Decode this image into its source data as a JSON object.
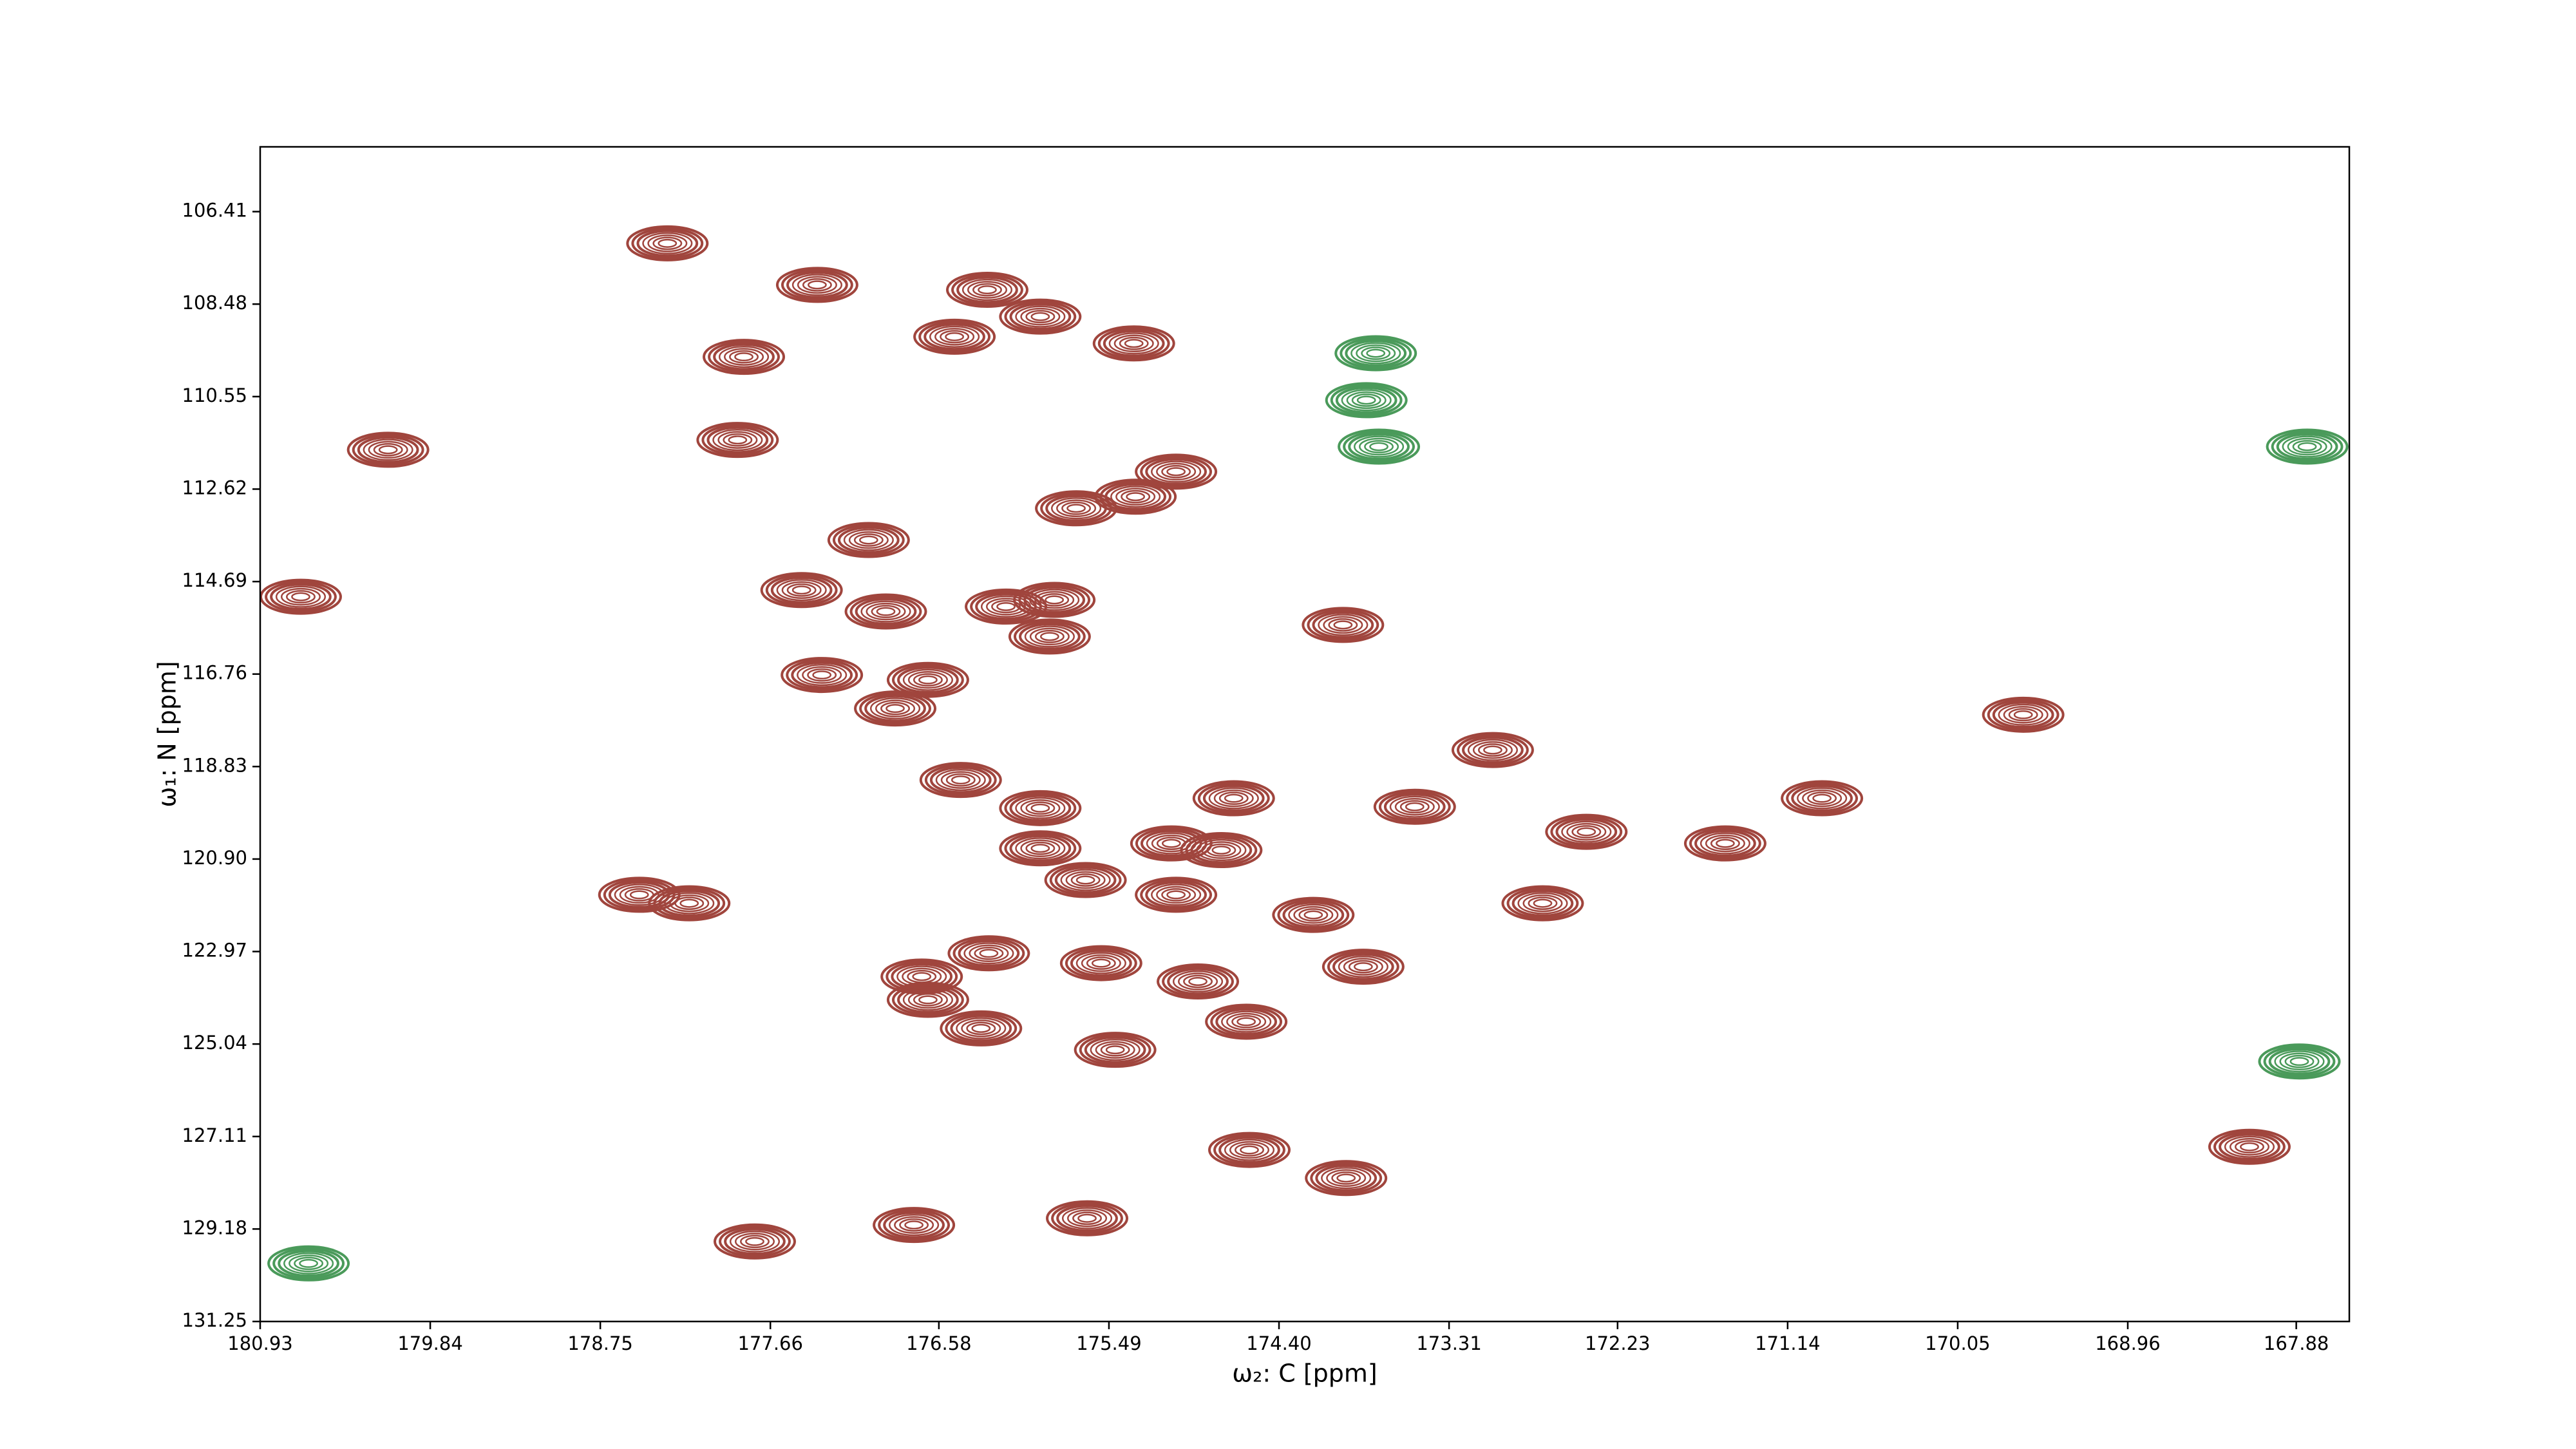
{
  "chart_data": {
    "type": "contour",
    "x_label": "ω₂: C [ppm]",
    "y_label": "ω₁: N [ppm]",
    "xlim": [
      180.93,
      167.54
    ],
    "ylim": [
      104.96,
      131.25
    ],
    "y_inverted": true,
    "xticks": [
      180.93,
      179.84,
      178.75,
      177.66,
      176.58,
      175.49,
      {
        "value": 174.4,
        "label": "174.40"
      },
      173.31,
      172.23,
      171.14,
      170.05,
      168.96,
      167.88
    ],
    "yticks": [
      106.41,
      108.48,
      110.55,
      112.62,
      114.69,
      116.76,
      118.83,
      {
        "value": 120.9,
        "label": "120.90"
      },
      122.97,
      125.04,
      127.11,
      129.18,
      131.25
    ],
    "series": [
      {
        "color": "#a0453d",
        "x": [
          178.32,
          177.36,
          176.27,
          175.93,
          176.48,
          175.33,
          177.83,
          177.87,
          180.11,
          175.32,
          175.06,
          175.7,
          177.03,
          177.46,
          176.92,
          176.15,
          175.84,
          175.87,
          173.99,
          177.33,
          176.65,
          176.86,
          180.67,
          176.44,
          175.93,
          174.69,
          173.53,
          173.03,
          169.63,
          170.92,
          172.43,
          171.54,
          175.93,
          174.77,
          175.09,
          175.64,
          175.06,
          178.5,
          178.18,
          172.71,
          174.18,
          176.26,
          175.54,
          173.86,
          176.69,
          176.65,
          174.92,
          176.31,
          174.61,
          175.45,
          174.59,
          173.97,
          175.63,
          176.74,
          177.76,
          168.18
        ],
        "values": [
          107.12,
          108.05,
          108.16,
          108.76,
          109.21,
          109.36,
          109.66,
          111.52,
          111.74,
          112.79,
          112.23,
          113.05,
          113.76,
          114.88,
          115.36,
          115.25,
          115.1,
          115.92,
          115.66,
          116.78,
          116.89,
          117.53,
          115.03,
          119.13,
          119.76,
          119.54,
          119.73,
          118.46,
          117.67,
          119.54,
          120.29,
          120.55,
          120.66,
          120.7,
          120.55,
          121.37,
          121.7,
          121.7,
          121.89,
          121.89,
          122.15,
          123.01,
          123.23,
          123.31,
          123.53,
          124.05,
          123.64,
          124.69,
          124.54,
          125.17,
          127.41,
          128.04,
          128.94,
          129.09,
          129.46,
          127.34
        ]
      },
      {
        "color": "#4a9a5a",
        "x": [
          173.78,
          173.84,
          173.76,
          167.81,
          180.62,
          167.86
        ],
        "values": [
          109.58,
          110.63,
          111.67,
          111.67,
          129.95,
          125.43
        ]
      }
    ]
  }
}
